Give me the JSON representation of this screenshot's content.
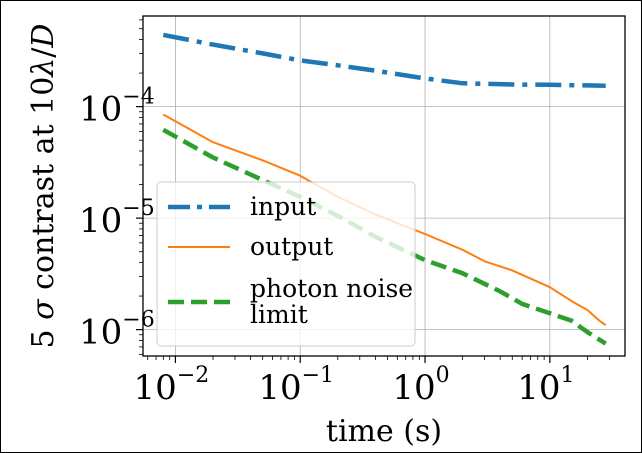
{
  "chart_data": {
    "type": "line",
    "xlabel": "time (s)",
    "ylabel_parts": [
      "5 ",
      "σ",
      " contrast at 10",
      "λ",
      "/",
      "D"
    ],
    "x_scale": "log",
    "y_scale": "log",
    "xlim": [
      0.0055,
      40
    ],
    "ylim": [
      5.8e-07,
      0.00065
    ],
    "grid": true,
    "legend_placement": "lower-left",
    "x_ticks": [
      {
        "value": 0.01,
        "base": "10",
        "exp": "−2"
      },
      {
        "value": 0.1,
        "base": "10",
        "exp": "−1"
      },
      {
        "value": 1,
        "base": "10",
        "exp": "0"
      },
      {
        "value": 10,
        "base": "10",
        "exp": "1"
      }
    ],
    "y_ticks": [
      {
        "value": 1e-06,
        "base": "10",
        "exp": "−6"
      },
      {
        "value": 1e-05,
        "base": "10",
        "exp": "−5"
      },
      {
        "value": 0.0001,
        "base": "10",
        "exp": "−4"
      }
    ],
    "series": [
      {
        "name": "input",
        "color": "#1f77b4",
        "style": "dashdot",
        "x": [
          0.008,
          0.02,
          0.05,
          0.1,
          0.2,
          0.4,
          1,
          2,
          5,
          10,
          20,
          28
        ],
        "y": [
          0.00044,
          0.00036,
          0.0003,
          0.00026,
          0.000235,
          0.00021,
          0.000179,
          0.000162,
          0.000158,
          0.000157,
          0.000155,
          0.000154
        ]
      },
      {
        "name": "output",
        "color": "#ff7f0e",
        "style": "solid",
        "x": [
          0.008,
          0.02,
          0.05,
          0.1,
          0.2,
          0.4,
          1,
          2,
          3,
          5,
          10,
          15,
          20,
          25,
          28
        ],
        "y": [
          8.5e-05,
          4.8e-05,
          3.3e-05,
          2.4e-05,
          1.55e-05,
          1.08e-05,
          7.2e-06,
          5.2e-06,
          4.1e-06,
          3.4e-06,
          2.4e-06,
          1.8e-06,
          1.5e-06,
          1.2e-06,
          1.1e-06
        ]
      },
      {
        "name": "photon noise limit",
        "name_lines": [
          "photon noise",
          "limit"
        ],
        "color": "#2ca02c",
        "style": "dashed",
        "x": [
          0.008,
          0.02,
          0.05,
          0.1,
          0.2,
          0.4,
          1,
          2,
          4,
          6,
          10,
          15,
          20,
          28
        ],
        "y": [
          6.2e-05,
          3.5e-05,
          2.2e-05,
          1.55e-05,
          1.05e-05,
          6.8e-06,
          4.2e-06,
          3.2e-06,
          2.2e-06,
          1.7e-06,
          1.4e-06,
          1.2e-06,
          9.5e-07,
          7.5e-07
        ]
      }
    ]
  }
}
